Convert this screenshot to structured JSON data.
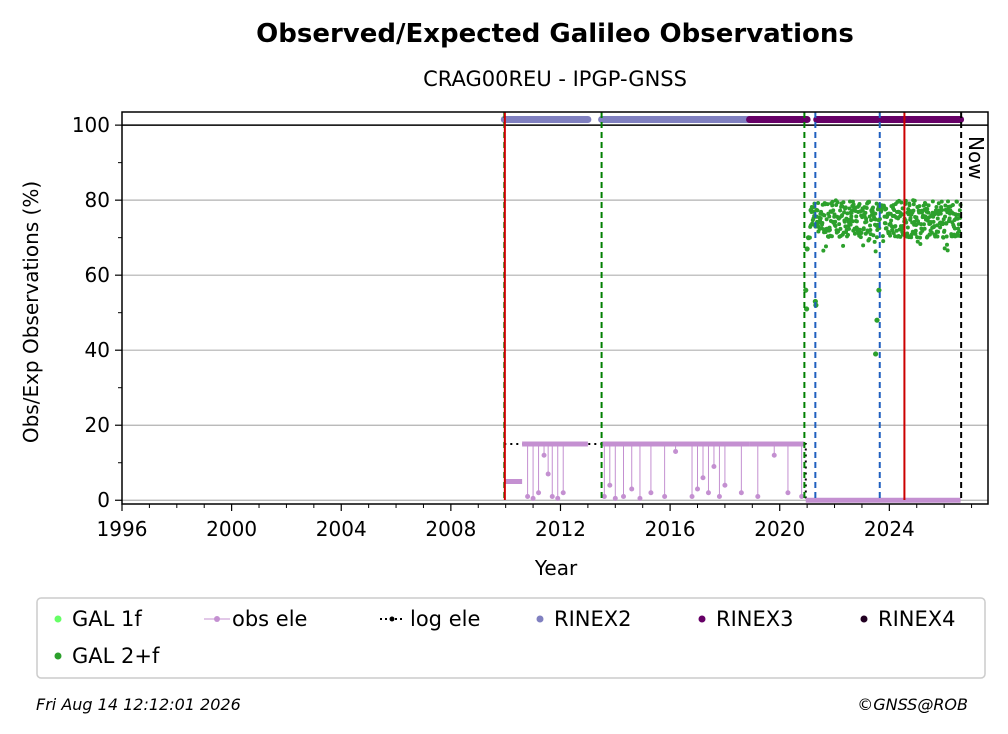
{
  "chart_data": {
    "type": "scatter",
    "title": "Observed/Expected Galileo Observations",
    "subtitle": "CRAG00REU - IPGP-GNSS",
    "xlabel": "Year",
    "ylabel": "Obs/Exp Observations (%)",
    "xlim": [
      1996,
      2027.6
    ],
    "ylim": [
      -1,
      103.5
    ],
    "x_ticks": [
      1996,
      2000,
      2004,
      2008,
      2012,
      2016,
      2020,
      2024
    ],
    "y_ticks": [
      0,
      20,
      40,
      60,
      80,
      100
    ],
    "grid": "horizontal",
    "legend_placement": "below",
    "now_label": "Now",
    "now_x": 2026.62,
    "colors": {
      "gal1f": "#66ff66",
      "gal2f": "#2ca02c",
      "obs_ele": "#c490d1",
      "log_ele": "#000000",
      "rinex2": "#8080c0",
      "rinex3": "#660066",
      "rinex4": "#220022",
      "green_line": "#008000",
      "blue_line": "#1f5fbf",
      "red_line": "#cc0000",
      "now_line": "#000000",
      "grid": "#b0b0b0"
    },
    "vertical_lines": [
      {
        "type": "green",
        "x": 2009.95
      },
      {
        "type": "red",
        "x": 2009.97
      },
      {
        "type": "green",
        "x": 2013.5
      },
      {
        "type": "green",
        "x": 2020.9
      },
      {
        "type": "blue",
        "x": 2021.3
      },
      {
        "type": "blue",
        "x": 2023.65
      },
      {
        "type": "red",
        "x": 2024.55
      }
    ],
    "rinex_bars": [
      {
        "series": "rinex2",
        "x_start": 2009.95,
        "x_end": 2013.0,
        "y": 101.5
      },
      {
        "series": "rinex2",
        "x_start": 2013.5,
        "x_end": 2018.9,
        "y": 101.5
      },
      {
        "series": "rinex3",
        "x_start": 2018.9,
        "x_end": 2021.0,
        "y": 101.5
      },
      {
        "series": "rinex3",
        "x_start": 2021.35,
        "x_end": 2026.6,
        "y": 101.5
      }
    ],
    "log_ele": [
      {
        "x": 2009.95,
        "y": 15
      },
      {
        "x": 2020.95,
        "y": 15
      },
      {
        "x": 2020.95,
        "y": 0
      },
      {
        "x": 2026.6,
        "y": 0
      }
    ],
    "obs_ele_segments": [
      {
        "x_start": 2009.95,
        "x_end": 2010.6,
        "y": 5
      },
      {
        "x_start": 2010.6,
        "x_end": 2013.0,
        "y": 15
      },
      {
        "x_start": 2013.5,
        "x_end": 2018.9,
        "y": 15
      },
      {
        "x_start": 2018.9,
        "x_end": 2020.9,
        "y": 15
      },
      {
        "x_start": 2020.95,
        "x_end": 2026.6,
        "y": 0
      }
    ],
    "obs_ele_dips": [
      {
        "x": 2010.8,
        "y": 1
      },
      {
        "x": 2011.0,
        "y": 0.5
      },
      {
        "x": 2011.2,
        "y": 2
      },
      {
        "x": 2011.4,
        "y": 12
      },
      {
        "x": 2011.55,
        "y": 7
      },
      {
        "x": 2011.7,
        "y": 1
      },
      {
        "x": 2011.9,
        "y": 0.5
      },
      {
        "x": 2012.1,
        "y": 2
      },
      {
        "x": 2013.6,
        "y": 1
      },
      {
        "x": 2013.8,
        "y": 4
      },
      {
        "x": 2014.0,
        "y": 0.5
      },
      {
        "x": 2014.3,
        "y": 1
      },
      {
        "x": 2014.6,
        "y": 3
      },
      {
        "x": 2014.9,
        "y": 0.5
      },
      {
        "x": 2015.3,
        "y": 2
      },
      {
        "x": 2015.8,
        "y": 1
      },
      {
        "x": 2016.2,
        "y": 13
      },
      {
        "x": 2016.8,
        "y": 1
      },
      {
        "x": 2017.0,
        "y": 3
      },
      {
        "x": 2017.2,
        "y": 6
      },
      {
        "x": 2017.4,
        "y": 2
      },
      {
        "x": 2017.6,
        "y": 9
      },
      {
        "x": 2017.8,
        "y": 1
      },
      {
        "x": 2018.0,
        "y": 4
      },
      {
        "x": 2018.6,
        "y": 2
      },
      {
        "x": 2019.2,
        "y": 1
      },
      {
        "x": 2019.8,
        "y": 12
      },
      {
        "x": 2020.3,
        "y": 2
      },
      {
        "x": 2020.8,
        "y": 1
      }
    ],
    "gal2f": {
      "points": [
        {
          "x": 2020.95,
          "y": 56
        },
        {
          "x": 2020.98,
          "y": 51
        },
        {
          "x": 2021.0,
          "y": 67
        },
        {
          "x": 2021.05,
          "y": 70
        },
        {
          "x": 2021.3,
          "y": 53
        },
        {
          "x": 2021.32,
          "y": 52
        },
        {
          "x": 2023.5,
          "y": 39
        },
        {
          "x": 2023.55,
          "y": 48
        },
        {
          "x": 2023.62,
          "y": 56
        }
      ],
      "band": {
        "x_start": 2021.1,
        "x_end": 2026.6,
        "y_low": 70,
        "y_high": 80
      }
    },
    "legend": [
      {
        "label": "GAL 1f",
        "series": "gal1f"
      },
      {
        "label": "obs ele",
        "series": "obs_ele"
      },
      {
        "label": "log ele",
        "series": "log_ele"
      },
      {
        "label": "RINEX2",
        "series": "rinex2"
      },
      {
        "label": "RINEX3",
        "series": "rinex3"
      },
      {
        "label": "RINEX4",
        "series": "rinex4"
      },
      {
        "label": "GAL 2+f",
        "series": "gal2f"
      }
    ]
  },
  "footer": {
    "timestamp": "Fri Aug 14 12:12:01 2026",
    "copyright": "©GNSS@ROB"
  }
}
